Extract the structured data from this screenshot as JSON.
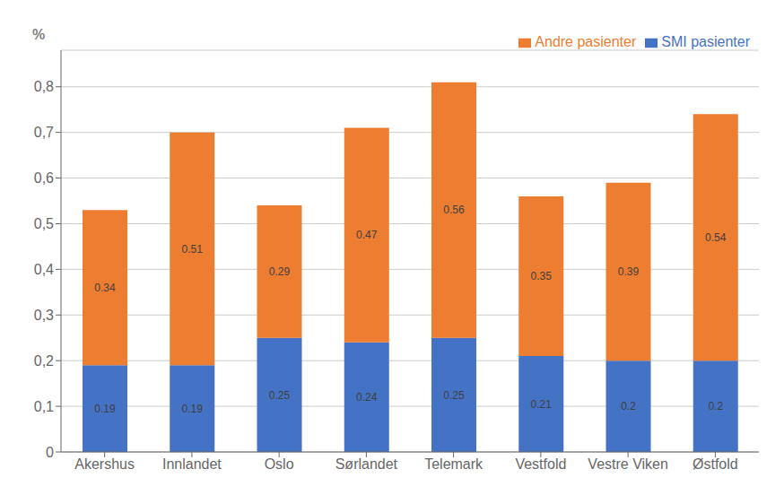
{
  "chart_data": {
    "type": "bar",
    "stacked": true,
    "categories": [
      "Akershus",
      "Innlandet",
      "Oslo",
      "Sørlandet",
      "Telemark",
      "Vestfold",
      "Vestre Viken",
      "Østfold"
    ],
    "series": [
      {
        "name": "SMI pasienter",
        "color": "#4472C4",
        "values": [
          0.19,
          0.19,
          0.25,
          0.24,
          0.25,
          0.21,
          0.2,
          0.2
        ]
      },
      {
        "name": "Andre pasienter",
        "color": "#ED7D31",
        "values": [
          0.34,
          0.51,
          0.29,
          0.47,
          0.56,
          0.35,
          0.39,
          0.54
        ]
      }
    ],
    "ylabel": "%",
    "ylim": [
      0,
      0.88
    ],
    "yticks": [
      0,
      {
        "value": 0.1,
        "label": "0,1"
      },
      {
        "value": 0.2,
        "label": "0,2"
      },
      {
        "value": 0.3,
        "label": "0,3"
      },
      {
        "value": 0.4,
        "label": "0,4"
      },
      {
        "value": 0.5,
        "label": "0,5"
      },
      {
        "value": 0.6,
        "label": "0,6"
      },
      {
        "value": 0.7,
        "label": "0,7"
      },
      {
        "value": 0.8,
        "label": "0,8"
      }
    ],
    "grid": true,
    "legend": "upper right",
    "data_labels": true
  }
}
